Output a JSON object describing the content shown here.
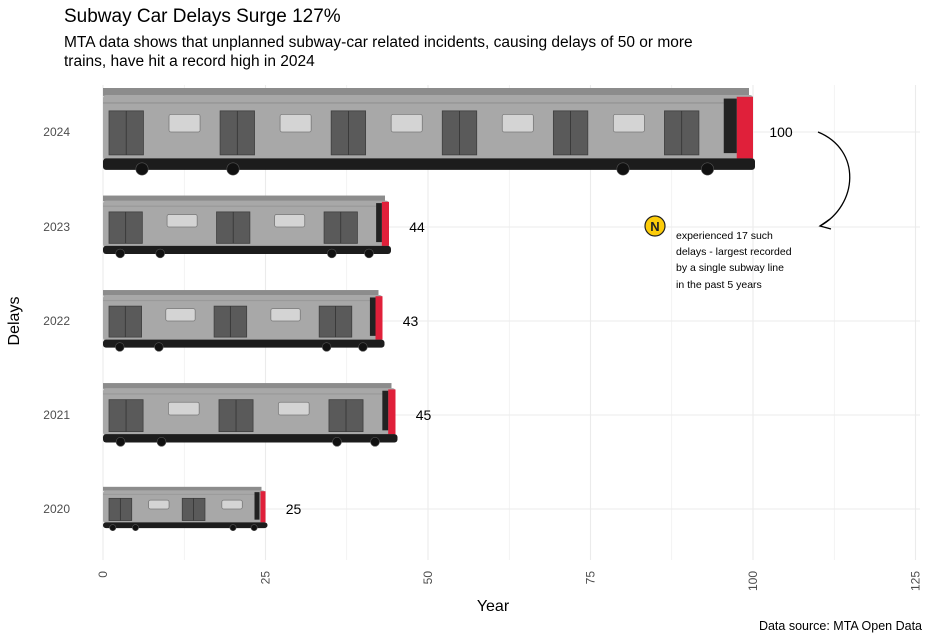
{
  "chart_data": {
    "type": "bar",
    "orientation": "horizontal",
    "title": "Subway Car Delays Surge 127%",
    "subtitle": "MTA data shows that unplanned subway-car related incidents, causing delays of 50 or more trains, have hit a record high in 2024",
    "xlabel": "Year",
    "ylabel": "Delays",
    "categories": [
      "2020",
      "2021",
      "2022",
      "2023",
      "2024"
    ],
    "values": [
      25,
      45,
      43,
      44,
      100
    ],
    "value_labels": [
      "25",
      "45",
      "43",
      "44",
      "100"
    ],
    "xlim": [
      0,
      125
    ],
    "xticks": [
      "0",
      "25",
      "50",
      "75",
      "100",
      "125"
    ],
    "grid": true,
    "annotation": {
      "badge": "N",
      "lines": [
        "experienced 17 such",
        "delays - largest recorded",
        "by a single subway line",
        "in the past 5 years"
      ]
    },
    "caption": "Data source: MTA Open Data",
    "colors": {
      "car_body": "#a8a8a8",
      "car_roof": "#8c8c8c",
      "door": "#5a5a5a",
      "underframe": "#1c1c1c",
      "front_accent": "#e0203a",
      "badge": "#fccc0a",
      "grid": "#ebebeb"
    }
  }
}
